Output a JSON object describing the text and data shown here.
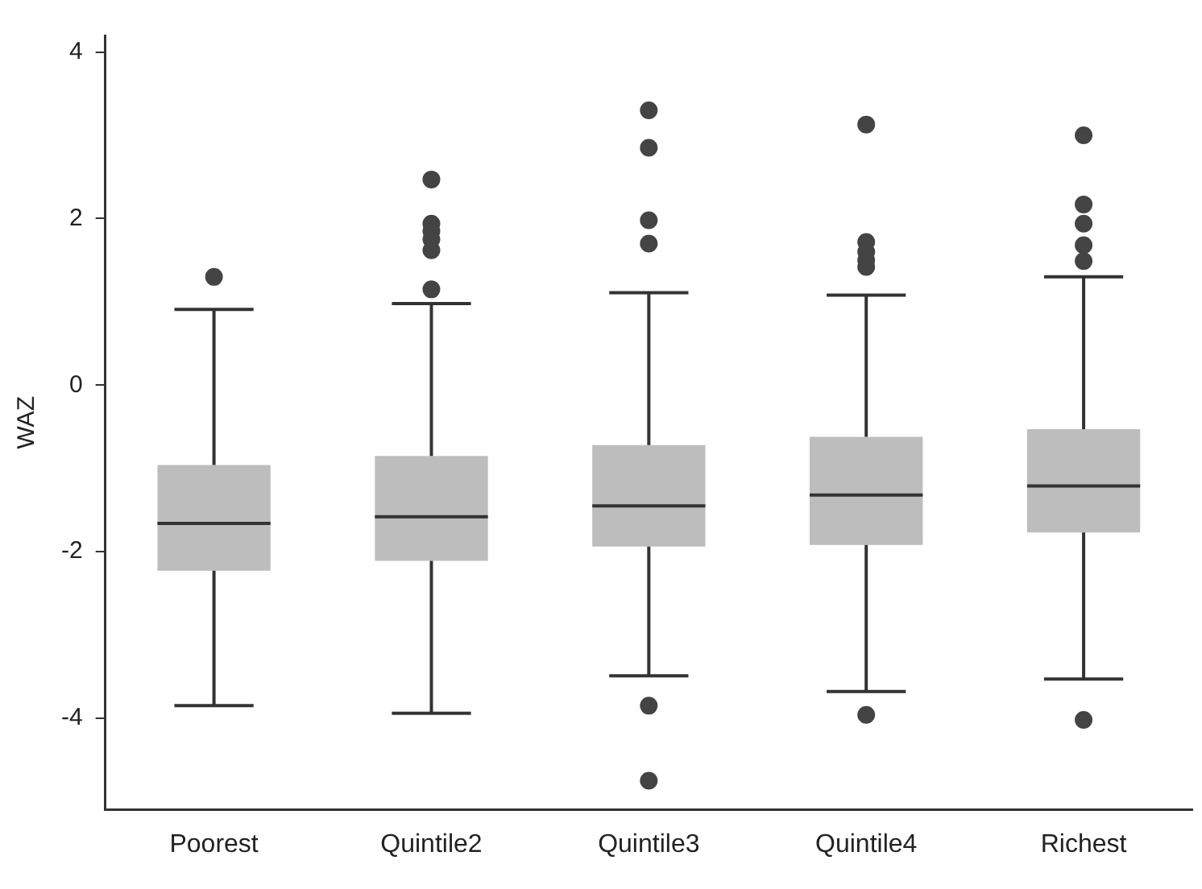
{
  "chart_data": {
    "type": "box",
    "ylabel": "WAZ",
    "categories": [
      "Poorest",
      "Quintile2",
      "Quintile3",
      "Quintile4",
      "Richest"
    ],
    "color": "#bdbdbd",
    "boxes": [
      {
        "low": -3.85,
        "q1": -2.23,
        "median": -1.66,
        "q3": -0.96,
        "high": 0.91,
        "outliers": [
          1.3
        ]
      },
      {
        "low": -3.94,
        "q1": -2.11,
        "median": -1.58,
        "q3": -0.85,
        "high": 0.98,
        "outliers": [
          2.47,
          1.94,
          1.85,
          1.75,
          1.62,
          1.15
        ]
      },
      {
        "low": -3.49,
        "q1": -1.94,
        "median": -1.45,
        "q3": -0.72,
        "high": 1.11,
        "outliers": [
          3.3,
          2.85,
          1.98,
          1.7,
          -3.85,
          -4.75
        ]
      },
      {
        "low": -3.68,
        "q1": -1.92,
        "median": -1.32,
        "q3": -0.62,
        "high": 1.08,
        "outliers": [
          3.13,
          1.72,
          1.6,
          1.5,
          1.42,
          -3.96
        ]
      },
      {
        "low": -3.53,
        "q1": -1.77,
        "median": -1.21,
        "q3": -0.53,
        "high": 1.3,
        "outliers": [
          3.0,
          2.17,
          1.94,
          1.68,
          1.49,
          -4.02
        ]
      }
    ],
    "ylim": [
      -5.1,
      4.2
    ],
    "yticks": [
      -4,
      -2,
      0,
      2,
      4
    ],
    "grid": false,
    "legend": false
  }
}
